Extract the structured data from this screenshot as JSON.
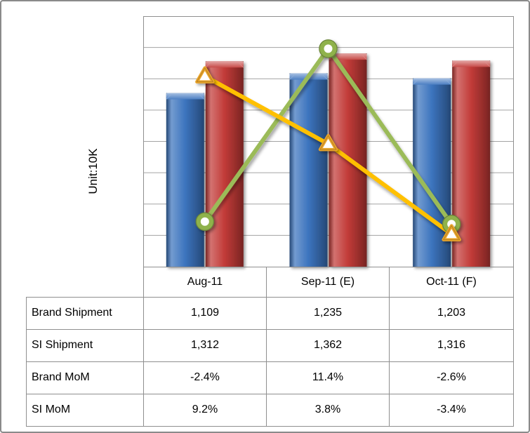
{
  "y_axis_title": "Unit:10K",
  "chart_data": {
    "type": "combo",
    "categories": [
      "Aug-11",
      "Sep-11 (E)",
      "Oct-11 (F)"
    ],
    "series": [
      {
        "name": "Brand Shipment",
        "type": "bar",
        "axis": "primary",
        "color": "#3C74BE",
        "values": [
          1109,
          1235,
          1203
        ]
      },
      {
        "name": "SI Shipment",
        "type": "bar",
        "axis": "primary",
        "color": "#C23B38",
        "values": [
          1312,
          1362,
          1316
        ]
      },
      {
        "name": "Brand MoM",
        "type": "line",
        "axis": "secondary",
        "color": "#9BBB59",
        "marker": "circle",
        "marker_color": "#8FB24C",
        "values": [
          -2.4,
          11.4,
          -2.6
        ]
      },
      {
        "name": "SI MoM",
        "type": "line",
        "axis": "secondary",
        "color": "#FFC000",
        "marker": "triangle",
        "marker_color": "#E9A42C",
        "values": [
          9.2,
          3.8,
          -3.4
        ]
      }
    ],
    "title": "",
    "xlabel": "",
    "ylabel": "Unit:10K",
    "primary_axis": {
      "min": 0,
      "max": 1600,
      "gridline_interval": 200,
      "labels_shown": false
    },
    "secondary_axis": {
      "min": -6,
      "max": 14,
      "labels_shown": false
    },
    "grid": true,
    "legend_position": "none (series named in attached data table)"
  },
  "table": {
    "column_headers": [
      "Aug-11",
      "Sep-11 (E)",
      "Oct-11 (F)"
    ],
    "rows": [
      {
        "label": "Brand Shipment",
        "values": [
          "1,109",
          "1,235",
          "1,203"
        ]
      },
      {
        "label": "SI Shipment",
        "values": [
          "1,312",
          "1,362",
          "1,316"
        ]
      },
      {
        "label": "Brand MoM",
        "values": [
          "-2.4%",
          "11.4%",
          "-2.6%"
        ]
      },
      {
        "label": "SI MoM",
        "values": [
          "9.2%",
          "3.8%",
          "-3.4%"
        ]
      }
    ]
  },
  "colors": {
    "background": "#FFFFFF",
    "frame_border": "#8A8A8A",
    "gridline": "#A3A3A3",
    "plot_border": "#8F8F8F",
    "table_border": "#8F8F8F",
    "text": "#000000",
    "bar_blue": "#3C74BE",
    "bar_red": "#C23B38",
    "line_green": "#9BBB59",
    "line_yellow": "#FFC000"
  }
}
